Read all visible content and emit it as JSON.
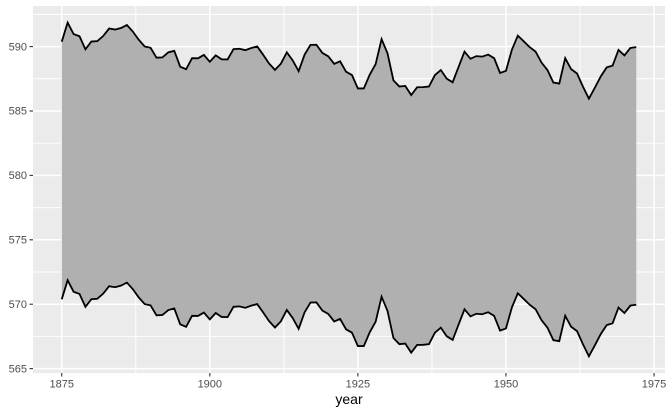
{
  "chart_data": {
    "type": "area",
    "subtype": "ribbon",
    "title": "",
    "xlabel": "year",
    "ylabel": "",
    "grid": true,
    "legend_position": "none",
    "x_ticks": [
      1875,
      1900,
      1925,
      1950,
      1975
    ],
    "x_tick_labels": [
      "1875",
      "1900",
      "1925",
      "1950",
      "1975"
    ],
    "y_ticks": [
      565,
      570,
      575,
      580,
      585,
      590
    ],
    "y_tick_labels": [
      "565",
      "570",
      "575",
      "580",
      "585",
      "590"
    ],
    "x_minor_ticks": [
      1887.5,
      1912.5,
      1937.5,
      1962.5
    ],
    "y_minor_ticks": [
      567.5,
      572.5,
      577.5,
      582.5,
      587.5,
      592.5
    ],
    "xlim": [
      1870.15,
      1976.85
    ],
    "ylim": [
      564.66,
      593.15
    ],
    "years": {
      "start": 1875,
      "end": 1972,
      "step": 1
    },
    "level_values": [
      580.38,
      581.86,
      580.97,
      580.8,
      579.79,
      580.39,
      580.42,
      580.82,
      581.4,
      581.32,
      581.44,
      581.68,
      581.17,
      580.53,
      580.01,
      579.91,
      579.14,
      579.16,
      579.55,
      579.67,
      578.44,
      578.24,
      579.1,
      579.09,
      579.35,
      578.82,
      579.32,
      579.01,
      579.0,
      579.8,
      579.83,
      579.72,
      579.89,
      580.01,
      579.37,
      578.69,
      578.19,
      578.67,
      579.55,
      578.92,
      578.09,
      579.37,
      580.13,
      580.14,
      579.51,
      579.24,
      578.66,
      578.86,
      578.05,
      577.79,
      576.75,
      576.75,
      577.82,
      578.64,
      580.58,
      579.48,
      577.38,
      576.9,
      576.94,
      576.24,
      576.84,
      576.85,
      576.9,
      577.79,
      578.18,
      577.51,
      577.23,
      578.42,
      579.61,
      579.05,
      579.26,
      579.22,
      579.38,
      579.1,
      577.95,
      578.12,
      579.75,
      580.85,
      580.41,
      579.96,
      579.61,
      578.76,
      578.18,
      577.21,
      577.13,
      579.1,
      578.25,
      577.91,
      576.89,
      575.96,
      576.8,
      577.68,
      578.38,
      578.52,
      579.74,
      579.31,
      579.89,
      579.96
    ],
    "ribbon": {
      "ymax_rule": "level + 10",
      "ymin_rule": "level - 10",
      "offset": 10
    },
    "series": [
      {
        "name": "upper edge (level + 10)"
      },
      {
        "name": "lower edge (level - 10)"
      }
    ],
    "colors": {
      "page_bg": "#FFFFFF",
      "panel_bg": "#EBEBEB",
      "grid": "#FFFFFF",
      "ribbon_fill": "#B0B0B0",
      "ribbon_edge": "#000000",
      "tick_mark": "#333333",
      "tick_label": "#4D4D4D",
      "axis_title": "#000000"
    }
  }
}
